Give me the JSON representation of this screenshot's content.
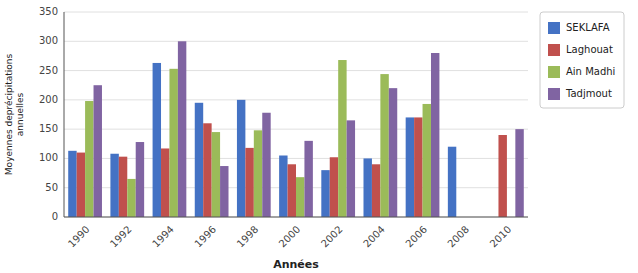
{
  "chart_data": {
    "type": "bar",
    "categories": [
      "1990",
      "1992",
      "1994",
      "1996",
      "1998",
      "2000",
      "2002",
      "2004",
      "2006",
      "2008",
      "2010"
    ],
    "series": [
      {
        "name": "SEKLAFA",
        "color": "#4472C4",
        "values": [
          113,
          108,
          263,
          195,
          200,
          105,
          80,
          100,
          170,
          120,
          0
        ]
      },
      {
        "name": "Laghouat",
        "color": "#C0504D",
        "values": [
          110,
          103,
          117,
          160,
          118,
          90,
          102,
          90,
          170,
          0,
          140
        ]
      },
      {
        "name": "Ain Madhi",
        "color": "#9BBB59",
        "values": [
          198,
          65,
          253,
          145,
          148,
          68,
          268,
          244,
          193,
          0,
          0
        ]
      },
      {
        "name": "Tadjmout",
        "color": "#8064A2",
        "values": [
          225,
          128,
          300,
          87,
          178,
          130,
          165,
          220,
          280,
          0,
          150
        ]
      }
    ],
    "x_label": "Années",
    "y_label": "Moyennes deprécipitations\nannuelles",
    "ylim": [
      0,
      350
    ],
    "yticks": [
      0,
      50,
      100,
      150,
      200,
      250,
      300,
      350
    ],
    "grid": true,
    "legend": "right"
  }
}
